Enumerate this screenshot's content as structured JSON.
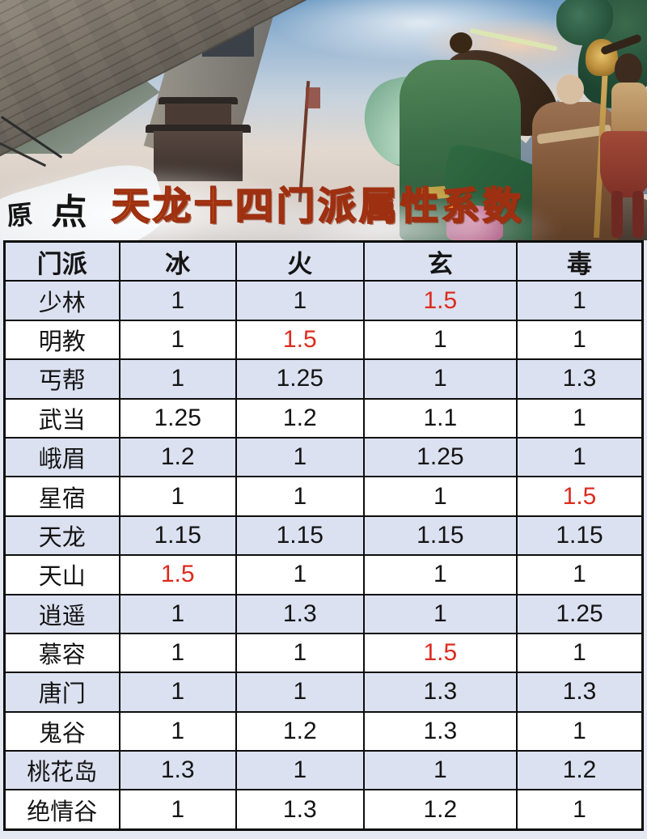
{
  "overlay": {
    "title": "天龙十四门派属性系数",
    "watermark": [
      "原",
      "点"
    ]
  },
  "colors": {
    "accent_orange": "#f7941d",
    "title_outline": "#9e3012",
    "row_shade": "#dbe1f0",
    "highlight_red": "#dd2b1f"
  },
  "chart_data": {
    "type": "table",
    "title": "天龙十四门派属性系数",
    "columns": [
      "门派",
      "冰",
      "火",
      "玄",
      "毒"
    ],
    "rows": [
      {
        "sect": "少林",
        "values": [
          "1",
          "1",
          "1.5",
          "1"
        ],
        "red_indices": [
          2
        ]
      },
      {
        "sect": "明教",
        "values": [
          "1",
          "1.5",
          "1",
          "1"
        ],
        "red_indices": [
          1
        ]
      },
      {
        "sect": "丐帮",
        "values": [
          "1",
          "1.25",
          "1",
          "1.3"
        ],
        "red_indices": []
      },
      {
        "sect": "武当",
        "values": [
          "1.25",
          "1.2",
          "1.1",
          "1"
        ],
        "red_indices": []
      },
      {
        "sect": "峨眉",
        "values": [
          "1.2",
          "1",
          "1.25",
          "1"
        ],
        "red_indices": []
      },
      {
        "sect": "星宿",
        "values": [
          "1",
          "1",
          "1",
          "1.5"
        ],
        "red_indices": [
          3
        ]
      },
      {
        "sect": "天龙",
        "values": [
          "1.15",
          "1.15",
          "1.15",
          "1.15"
        ],
        "red_indices": []
      },
      {
        "sect": "天山",
        "values": [
          "1.5",
          "1",
          "1",
          "1"
        ],
        "red_indices": [
          0
        ]
      },
      {
        "sect": "逍遥",
        "values": [
          "1",
          "1.3",
          "1",
          "1.25"
        ],
        "red_indices": []
      },
      {
        "sect": "慕容",
        "values": [
          "1",
          "1",
          "1.5",
          "1"
        ],
        "red_indices": [
          2
        ]
      },
      {
        "sect": "唐门",
        "values": [
          "1",
          "1",
          "1.3",
          "1.3"
        ],
        "red_indices": []
      },
      {
        "sect": "鬼谷",
        "values": [
          "1",
          "1.2",
          "1.3",
          "1"
        ],
        "red_indices": []
      },
      {
        "sect": "桃花岛",
        "values": [
          "1.3",
          "1",
          "1",
          "1.2"
        ],
        "red_indices": []
      },
      {
        "sect": "绝情谷",
        "values": [
          "1",
          "1.3",
          "1.2",
          "1"
        ],
        "red_indices": []
      }
    ],
    "layout_hints": {
      "shaded_row_color_applies_to": "header and odd-numbered data rows",
      "red_marks": "peak coefficient 1.5 cells"
    }
  }
}
